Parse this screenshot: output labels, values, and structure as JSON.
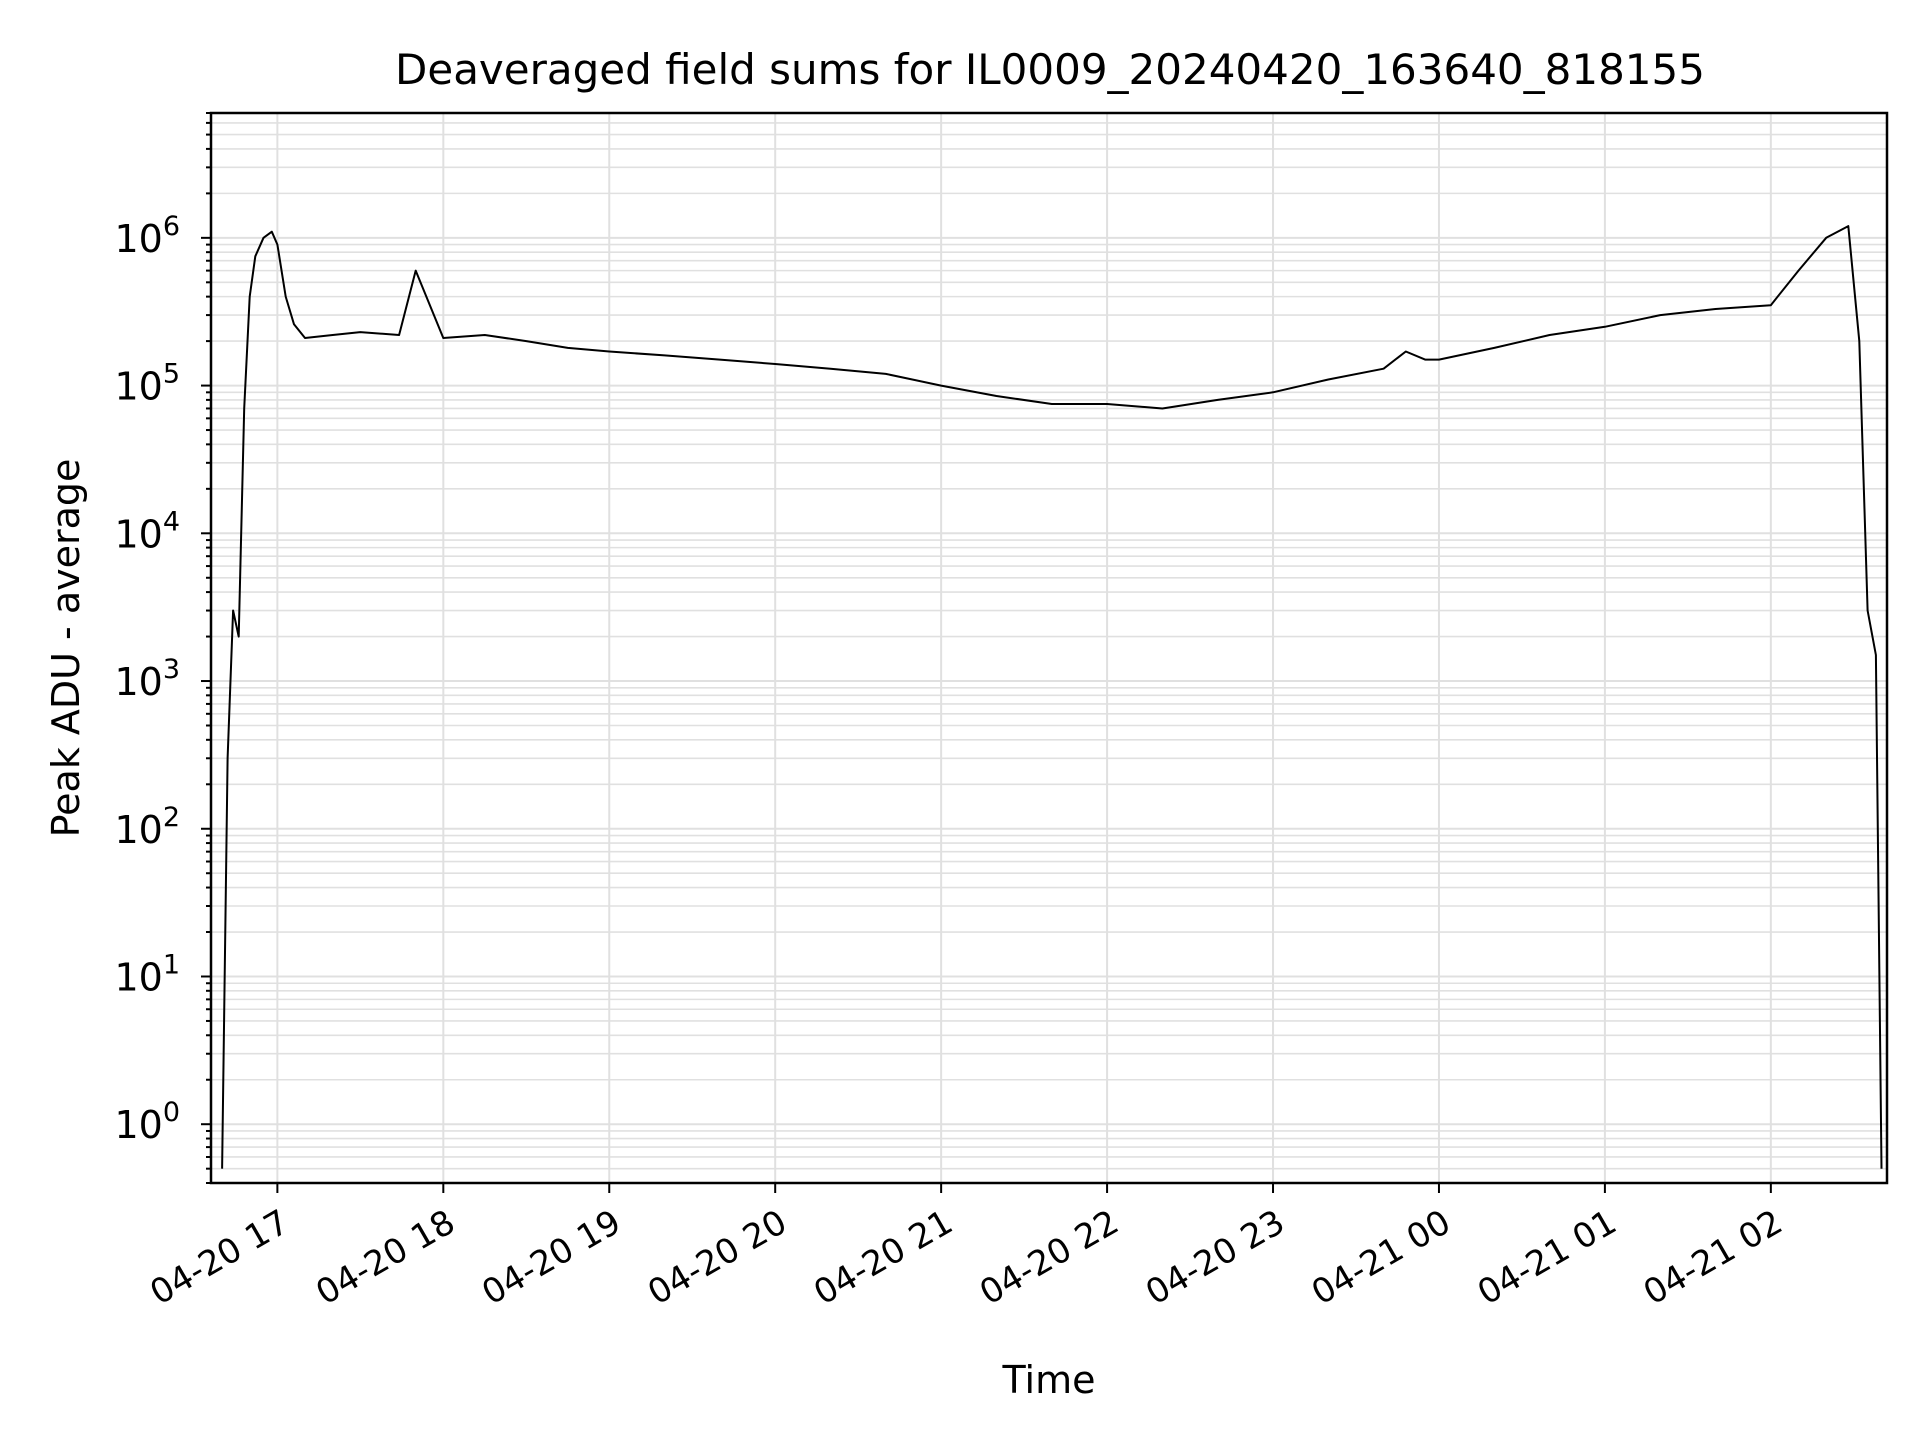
{
  "chart_data": {
    "type": "line",
    "title": "Deaveraged field sums for IL0009_20240420_163640_818155",
    "xlabel": "Time",
    "ylabel": "Peak ADU - average",
    "yscale": "log",
    "ylim": [
      0.4,
      7000000
    ],
    "xlim": [
      "2024-04-20 16:36",
      "2024-04-21 02:42"
    ],
    "grid": true,
    "legend": "none",
    "line_color": "#000000",
    "grid_color": "#e0e0e0",
    "x_ticks": [
      {
        "t": "2024-04-20 17:00",
        "label": "04-20 17"
      },
      {
        "t": "2024-04-20 18:00",
        "label": "04-20 18"
      },
      {
        "t": "2024-04-20 19:00",
        "label": "04-20 19"
      },
      {
        "t": "2024-04-20 20:00",
        "label": "04-20 20"
      },
      {
        "t": "2024-04-20 21:00",
        "label": "04-20 21"
      },
      {
        "t": "2024-04-20 22:00",
        "label": "04-20 22"
      },
      {
        "t": "2024-04-20 23:00",
        "label": "04-20 23"
      },
      {
        "t": "2024-04-21 00:00",
        "label": "04-21 00"
      },
      {
        "t": "2024-04-21 01:00",
        "label": "04-21 01"
      },
      {
        "t": "2024-04-21 02:00",
        "label": "04-21 02"
      }
    ],
    "y_ticks": [
      {
        "value": 1,
        "base": "10",
        "exp": "0"
      },
      {
        "value": 10,
        "base": "10",
        "exp": "1"
      },
      {
        "value": 100,
        "base": "10",
        "exp": "2"
      },
      {
        "value": 1000,
        "base": "10",
        "exp": "3"
      },
      {
        "value": 10000,
        "base": "10",
        "exp": "4"
      },
      {
        "value": 100000,
        "base": "10",
        "exp": "5"
      },
      {
        "value": 1000000,
        "base": "10",
        "exp": "6"
      }
    ],
    "series": [
      {
        "x": [
          "2024-04-20 16:40",
          "2024-04-20 16:42",
          "2024-04-20 16:44",
          "2024-04-20 16:46",
          "2024-04-20 16:48",
          "2024-04-20 16:50",
          "2024-04-20 16:52",
          "2024-04-20 16:55",
          "2024-04-20 16:58",
          "2024-04-20 17:00",
          "2024-04-20 17:03",
          "2024-04-20 17:06",
          "2024-04-20 17:10",
          "2024-04-20 17:20",
          "2024-04-20 17:30",
          "2024-04-20 17:44",
          "2024-04-20 17:50",
          "2024-04-20 18:00",
          "2024-04-20 18:15",
          "2024-04-20 18:30",
          "2024-04-20 18:45",
          "2024-04-20 19:00",
          "2024-04-20 19:20",
          "2024-04-20 19:40",
          "2024-04-20 20:00",
          "2024-04-20 20:20",
          "2024-04-20 20:40",
          "2024-04-20 21:00",
          "2024-04-20 21:20",
          "2024-04-20 21:40",
          "2024-04-20 22:00",
          "2024-04-20 22:20",
          "2024-04-20 22:40",
          "2024-04-20 23:00",
          "2024-04-20 23:20",
          "2024-04-20 23:40",
          "2024-04-20 23:48",
          "2024-04-20 23:55",
          "2024-04-21 00:00",
          "2024-04-21 00:20",
          "2024-04-21 00:40",
          "2024-04-21 01:00",
          "2024-04-21 01:20",
          "2024-04-21 01:40",
          "2024-04-21 02:00",
          "2024-04-21 02:10",
          "2024-04-21 02:20",
          "2024-04-21 02:28",
          "2024-04-21 02:32",
          "2024-04-21 02:35",
          "2024-04-21 02:38",
          "2024-04-21 02:40"
        ],
        "y": [
          0.5,
          300,
          3000,
          2000,
          70000,
          400000,
          750000,
          1000000,
          1100000,
          900000,
          400000,
          260000,
          210000,
          220000,
          230000,
          220000,
          600000,
          210000,
          220000,
          200000,
          180000,
          170000,
          160000,
          150000,
          140000,
          130000,
          120000,
          100000,
          85000,
          75000,
          75000,
          70000,
          80000,
          90000,
          110000,
          130000,
          170000,
          150000,
          150000,
          180000,
          220000,
          250000,
          300000,
          330000,
          350000,
          600000,
          1000000,
          1200000,
          200000,
          3000,
          1500,
          0.5
        ]
      }
    ]
  }
}
